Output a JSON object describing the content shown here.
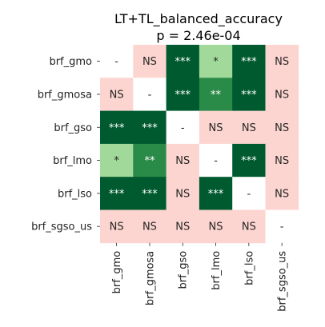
{
  "chart_data": {
    "type": "heatmap",
    "title": "LT+TL_balanced_accuracy",
    "subtitle": "p = 2.46e-04",
    "row_labels": [
      "brf_gmo",
      "brf_gmosa",
      "brf_gso",
      "brf_lmo",
      "brf_lso",
      "brf_sgso_us"
    ],
    "col_labels": [
      "brf_gmo",
      "brf_gmosa",
      "brf_gso",
      "brf_lmo",
      "brf_lso",
      "brf_sgso_us"
    ],
    "cells": [
      [
        "-",
        "NS",
        "***",
        "*",
        "***",
        "NS"
      ],
      [
        "NS",
        "-",
        "***",
        "**",
        "***",
        "NS"
      ],
      [
        "***",
        "***",
        "-",
        "NS",
        "NS",
        "NS"
      ],
      [
        "*",
        "**",
        "NS",
        "-",
        "***",
        "NS"
      ],
      [
        "***",
        "***",
        "NS",
        "***",
        "-",
        "NS"
      ],
      [
        "NS",
        "NS",
        "NS",
        "NS",
        "NS",
        "-"
      ]
    ],
    "colors": {
      "***": "#005a2f",
      "**": "#2a8a47",
      "*": "#a1d99b",
      "NS": "#fcd5d0",
      "-": "#ffffff"
    },
    "text_colors": {
      "***": "#ffffff",
      "**": "#ffffff",
      "*": "#262626",
      "NS": "#262626",
      "-": "#262626"
    }
  }
}
